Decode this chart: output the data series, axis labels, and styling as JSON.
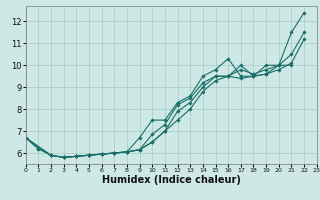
{
  "xlabel": "Humidex (Indice chaleur)",
  "bg_color": "#cde8e5",
  "grid_color": "#aacfcc",
  "line_color": "#1a6e6a",
  "x_min": 0,
  "x_max": 23,
  "y_min": 5.5,
  "y_max": 12.7,
  "lines": [
    {
      "x": [
        0,
        1,
        2,
        3,
        4,
        5,
        6,
        7,
        8,
        9,
        10,
        11,
        12,
        13,
        14,
        15,
        16,
        17,
        18,
        19,
        20,
        21,
        22
      ],
      "y": [
        6.7,
        6.2,
        5.9,
        5.8,
        5.85,
        5.9,
        5.95,
        6.0,
        6.05,
        6.7,
        7.5,
        7.5,
        8.3,
        8.6,
        9.5,
        9.8,
        10.3,
        9.5,
        9.5,
        10.0,
        10.0,
        11.5,
        12.4
      ]
    },
    {
      "x": [
        0,
        1,
        2,
        3,
        4,
        5,
        6,
        7,
        8,
        9,
        10,
        11,
        12,
        13,
        14,
        15,
        16,
        17,
        18,
        19,
        20,
        21
      ],
      "y": [
        6.7,
        6.2,
        5.9,
        5.8,
        5.85,
        5.9,
        5.95,
        6.0,
        6.05,
        6.15,
        6.85,
        7.3,
        8.2,
        8.5,
        9.2,
        9.5,
        9.5,
        9.4,
        9.5,
        9.6,
        10.0,
        10.0
      ]
    },
    {
      "x": [
        0,
        2,
        3,
        4,
        5,
        6,
        7,
        8,
        9,
        10,
        11,
        12,
        13,
        14,
        15,
        16,
        17,
        18,
        19,
        20,
        21,
        22
      ],
      "y": [
        6.7,
        5.9,
        5.8,
        5.85,
        5.9,
        5.95,
        6.0,
        6.05,
        6.15,
        6.5,
        7.0,
        7.9,
        8.3,
        9.0,
        9.5,
        9.5,
        9.8,
        9.6,
        9.8,
        10.0,
        10.5,
        11.5
      ]
    },
    {
      "x": [
        0,
        2,
        3,
        4,
        5,
        6,
        7,
        8,
        9,
        10,
        11,
        12,
        13,
        14,
        15,
        16,
        17,
        18,
        19,
        20,
        21,
        22
      ],
      "y": [
        6.7,
        5.9,
        5.8,
        5.85,
        5.9,
        5.95,
        6.0,
        6.05,
        6.15,
        6.5,
        7.0,
        7.5,
        8.0,
        8.8,
        9.3,
        9.5,
        10.0,
        9.5,
        9.6,
        9.8,
        10.1,
        11.2
      ]
    }
  ],
  "yticks": [
    6,
    7,
    8,
    9,
    10,
    11,
    12
  ],
  "xticks": [
    0,
    1,
    2,
    3,
    4,
    5,
    6,
    7,
    8,
    9,
    10,
    11,
    12,
    13,
    14,
    15,
    16,
    17,
    18,
    19,
    20,
    21,
    22,
    23
  ],
  "xlabel_fontsize": 7,
  "ylabel_fontsize": 6,
  "xtick_fontsize": 5,
  "ytick_fontsize": 6
}
